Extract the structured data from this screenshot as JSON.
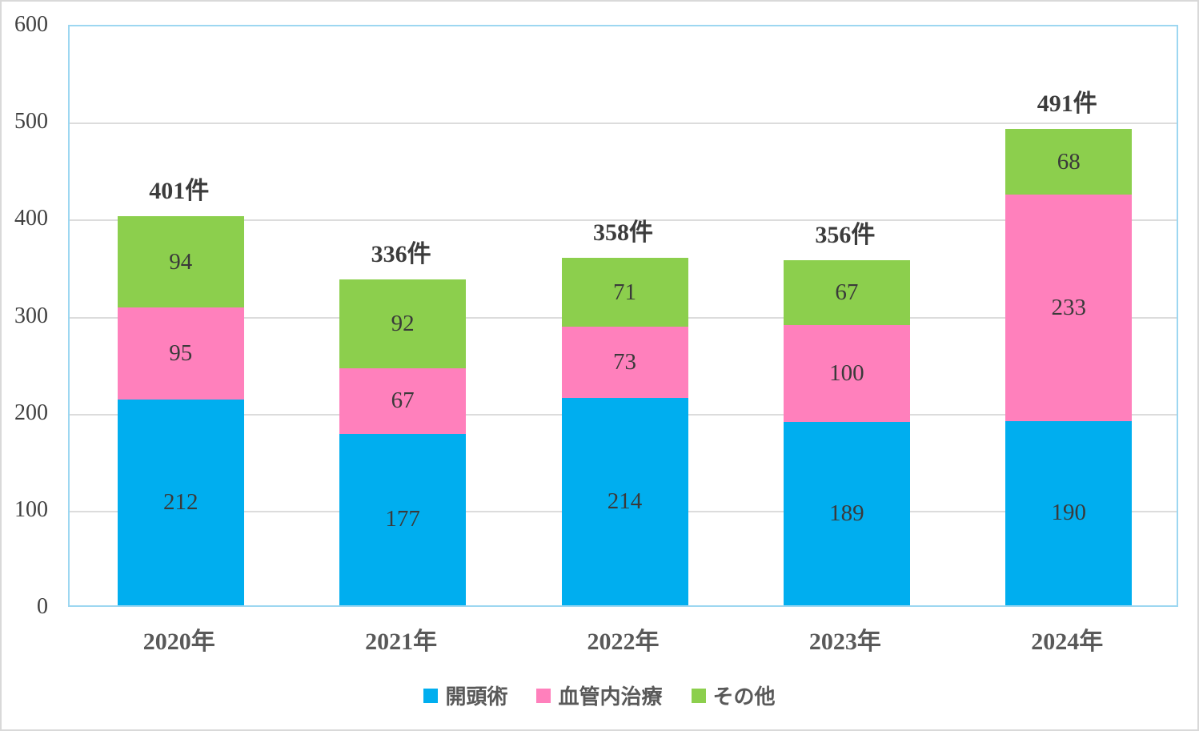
{
  "figure": {
    "background": "#FFFFFF",
    "outer_border_color": "#D9D9D9",
    "plot_border_color": "#9DD7F1",
    "gridline_color": "#DCDCDC"
  },
  "chart_data": {
    "type": "bar",
    "stacked": true,
    "title": "",
    "xlabel": "",
    "ylabel": "",
    "categories": [
      "2020年",
      "2021年",
      "2022年",
      "2023年",
      "2024年"
    ],
    "series": [
      {
        "name": "開頭術",
        "color": "#00AEEF",
        "values": [
          212,
          177,
          214,
          189,
          190
        ]
      },
      {
        "name": "血管内治療",
        "color": "#FF80BC",
        "values": [
          95,
          67,
          73,
          100,
          233
        ]
      },
      {
        "name": "その他",
        "color": "#8CCF4D",
        "values": [
          94,
          92,
          71,
          67,
          68
        ]
      }
    ],
    "totals": [
      401,
      336,
      358,
      356,
      491
    ],
    "total_labels": [
      "401件",
      "336件",
      "358件",
      "356件",
      "491件"
    ],
    "ylim": [
      0,
      600
    ],
    "y_ticks": [
      0,
      100,
      200,
      300,
      400,
      500,
      600
    ],
    "grid": true,
    "legend_position": "bottom",
    "legend_entries": [
      "開頭術",
      "血管内治療",
      "その他"
    ]
  },
  "text_colors": {
    "tick": "#404040",
    "category": "#595959",
    "total": "#3C3C3C",
    "segment_label": "#3A3A3A",
    "legend": "#595959"
  }
}
